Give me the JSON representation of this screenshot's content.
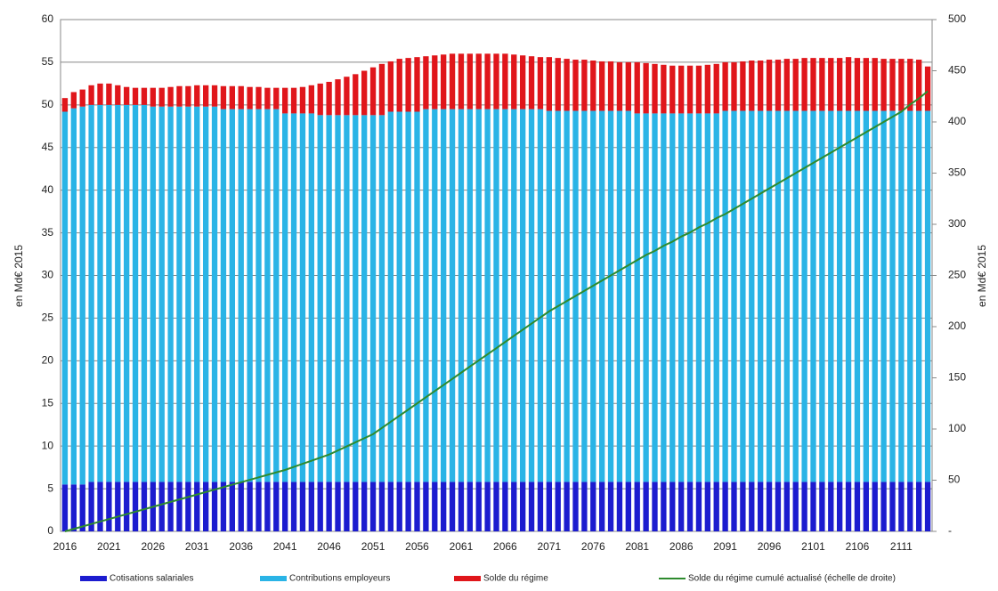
{
  "chart_data": {
    "type": "bar",
    "stacked": true,
    "y_label": "en Md€ 2015",
    "y2_label": "en Md€ 2015",
    "categories": [
      "2016",
      null,
      null,
      null,
      null,
      "2021",
      null,
      null,
      null,
      null,
      "2026",
      null,
      null,
      null,
      null,
      "2031",
      null,
      null,
      null,
      null,
      "2036",
      null,
      null,
      null,
      null,
      "2041",
      null,
      null,
      null,
      null,
      "2046",
      null,
      null,
      null,
      null,
      "2051",
      null,
      null,
      null,
      null,
      "2056",
      null,
      null,
      null,
      null,
      "2061",
      null,
      null,
      null,
      null,
      "2066",
      null,
      null,
      null,
      null,
      "2071",
      null,
      null,
      null,
      null,
      "2076",
      null,
      null,
      null,
      null,
      "2081",
      null,
      null,
      null,
      null,
      "2086",
      null,
      null,
      null,
      null,
      "2091",
      null,
      null,
      null,
      null,
      "2096",
      null,
      null,
      null,
      null,
      "2101",
      null,
      null,
      null,
      null,
      "2106",
      null,
      null,
      null,
      null,
      "2111",
      null,
      null,
      null
    ],
    "series": [
      {
        "name": "Cotisations salariales",
        "type": "bar",
        "color": "#1c1ccf",
        "values": [
          5.5,
          5.5,
          5.5,
          5.8,
          5.8,
          5.8,
          5.8,
          5.8,
          5.8,
          5.8,
          5.8,
          5.8,
          5.8,
          5.8,
          5.8,
          5.8,
          5.8,
          5.8,
          5.8,
          5.8,
          5.8,
          5.8,
          5.8,
          5.8,
          5.8,
          5.8,
          5.8,
          5.8,
          5.8,
          5.8,
          5.8,
          5.8,
          5.8,
          5.8,
          5.8,
          5.8,
          5.8,
          5.8,
          5.8,
          5.8,
          5.8,
          5.8,
          5.8,
          5.8,
          5.8,
          5.8,
          5.8,
          5.8,
          5.8,
          5.8,
          5.8,
          5.8,
          5.8,
          5.8,
          5.8,
          5.8,
          5.8,
          5.8,
          5.8,
          5.8,
          5.8,
          5.8,
          5.8,
          5.8,
          5.8,
          5.8,
          5.8,
          5.8,
          5.8,
          5.8,
          5.8,
          5.8,
          5.8,
          5.8,
          5.8,
          5.8,
          5.8,
          5.8,
          5.8,
          5.8,
          5.8,
          5.8,
          5.8,
          5.8,
          5.8,
          5.8,
          5.8,
          5.8,
          5.8,
          5.8,
          5.8,
          5.8,
          5.8,
          5.8,
          5.8,
          5.8,
          5.8,
          5.8,
          5.8
        ]
      },
      {
        "name": "Contributions employeurs",
        "type": "bar",
        "color": "#2ab4e6",
        "values": [
          43.7,
          44.1,
          44.3,
          44.2,
          44.2,
          44.2,
          44.2,
          44.2,
          44.2,
          44.2,
          44.0,
          44.0,
          44.0,
          44.0,
          44.0,
          44.0,
          44.0,
          44.0,
          43.7,
          43.7,
          43.7,
          43.7,
          43.7,
          43.7,
          43.7,
          43.2,
          43.2,
          43.2,
          43.2,
          43.0,
          43.0,
          43.0,
          43.0,
          43.0,
          43.0,
          43.0,
          43.0,
          43.4,
          43.4,
          43.4,
          43.4,
          43.7,
          43.7,
          43.7,
          43.7,
          43.7,
          43.7,
          43.7,
          43.7,
          43.7,
          43.7,
          43.7,
          43.7,
          43.7,
          43.7,
          43.5,
          43.5,
          43.5,
          43.5,
          43.5,
          43.5,
          43.5,
          43.5,
          43.5,
          43.5,
          43.2,
          43.2,
          43.2,
          43.2,
          43.2,
          43.2,
          43.2,
          43.2,
          43.2,
          43.2,
          43.5,
          43.5,
          43.5,
          43.5,
          43.5,
          43.5,
          43.5,
          43.5,
          43.5,
          43.5,
          43.5,
          43.5,
          43.5,
          43.5,
          43.5,
          43.5,
          43.5,
          43.5,
          43.5,
          43.5,
          43.5,
          43.5,
          43.5,
          43.5
        ]
      },
      {
        "name": "Solde du régime",
        "type": "bar",
        "color": "#e0161b",
        "values": [
          1.6,
          1.9,
          2.0,
          2.3,
          2.5,
          2.5,
          2.3,
          2.1,
          2.0,
          2.0,
          2.2,
          2.2,
          2.3,
          2.4,
          2.4,
          2.5,
          2.5,
          2.5,
          2.7,
          2.7,
          2.7,
          2.6,
          2.6,
          2.5,
          2.5,
          3.0,
          3.0,
          3.1,
          3.3,
          3.7,
          3.9,
          4.2,
          4.5,
          4.8,
          5.2,
          5.6,
          6.0,
          5.9,
          6.2,
          6.3,
          6.4,
          6.2,
          6.3,
          6.4,
          6.5,
          6.5,
          6.5,
          6.5,
          6.5,
          6.5,
          6.5,
          6.4,
          6.3,
          6.2,
          6.1,
          6.3,
          6.2,
          6.1,
          6.0,
          6.0,
          5.9,
          5.8,
          5.8,
          5.7,
          5.7,
          6.0,
          5.9,
          5.8,
          5.7,
          5.6,
          5.6,
          5.6,
          5.6,
          5.7,
          5.8,
          5.7,
          5.7,
          5.8,
          5.9,
          5.9,
          6.0,
          6.0,
          6.1,
          6.1,
          6.2,
          6.2,
          6.2,
          6.2,
          6.2,
          6.3,
          6.2,
          6.2,
          6.2,
          6.1,
          6.1,
          6.1,
          6.1,
          6.0,
          5.2
        ]
      },
      {
        "name": "Solde du régime cumulé actualisé (échelle de droite)",
        "type": "line",
        "axis": "y2",
        "color": "#2e8b2e",
        "values": [
          0,
          2.4,
          4.8,
          7.2,
          9.6,
          12,
          14.4,
          16.8,
          19.2,
          21.6,
          24,
          26.4,
          28.8,
          31.2,
          33.6,
          36,
          38.4,
          40.8,
          43.2,
          45.6,
          48,
          50.4,
          52.8,
          55.2,
          57.6,
          60,
          63,
          66,
          69,
          72,
          75,
          79,
          83,
          87,
          91,
          95,
          101,
          107,
          113,
          119,
          125,
          131,
          137,
          143,
          149,
          155,
          161,
          167,
          173,
          179,
          185,
          191,
          197,
          203,
          209,
          215,
          220,
          225,
          230,
          235,
          240,
          245,
          250,
          255,
          260,
          265,
          270,
          274,
          279,
          283,
          288,
          292,
          297,
          301,
          306,
          310,
          315,
          320,
          325,
          330,
          335,
          340,
          345,
          350,
          355,
          360,
          365,
          370,
          375,
          380,
          385,
          390,
          395,
          400,
          405,
          410,
          417,
          423,
          430
        ]
      }
    ],
    "ylim": [
      0,
      60
    ],
    "yticks": [
      0,
      5,
      10,
      15,
      20,
      25,
      30,
      35,
      40,
      45,
      50,
      55,
      60
    ],
    "y2lim": [
      0,
      500
    ],
    "y2ticks": [
      {
        "value": 0,
        "label": "-"
      },
      50,
      100,
      150,
      200,
      250,
      300,
      350,
      400,
      450,
      500
    ],
    "grid": true,
    "legend": "bottom"
  }
}
